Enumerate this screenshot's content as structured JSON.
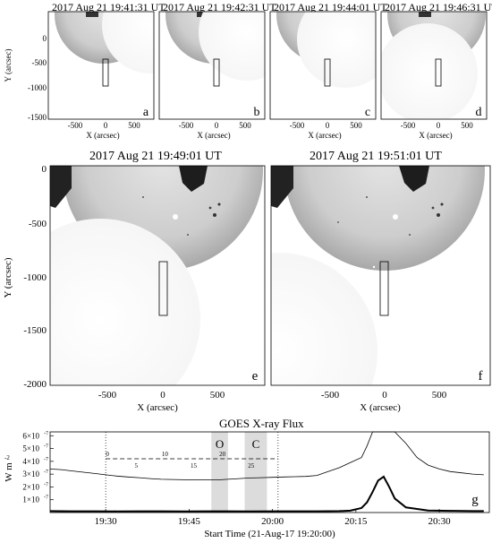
{
  "panels": {
    "a": {
      "title": "2017 Aug 21 19:41:31 UT",
      "letter": "a"
    },
    "b": {
      "title": "2017 Aug 21 19:42:31 UT",
      "letter": "b"
    },
    "c": {
      "title": "2017 Aug 21 19:44:01 UT",
      "letter": "c"
    },
    "d": {
      "title": "2017 Aug 21 19:46:31 UT",
      "letter": "d"
    },
    "e": {
      "title": "2017 Aug 21 19:49:01 UT",
      "letter": "e"
    },
    "f": {
      "title": "2017 Aug 21 19:51:01 UT",
      "letter": "f"
    }
  },
  "axes": {
    "x_label": "X (arcsec)",
    "y_label": "Y (arcsec)",
    "x_ticks": [
      "-500",
      "0",
      "500"
    ],
    "y_ticks": [
      "0",
      "-500",
      "-1000",
      "-1500",
      "-2000"
    ]
  },
  "chart_data": {
    "type": "line",
    "title": "GOES X-ray Flux",
    "letter": "g",
    "xlabel": "Start Time (21-Aug-17 19:20:00)",
    "ylabel": "W m",
    "ylabel_sup": "-2",
    "x_tick_labels": [
      "19:30",
      "19:45",
      "20:00",
      "20:15",
      "20:30"
    ],
    "x_tick_minutes": [
      10,
      25,
      40,
      55,
      70
    ],
    "xlim_minutes": [
      0,
      79
    ],
    "y_tick_labels": [
      "1×10",
      "2×10",
      "3×10",
      "4×10",
      "5×10",
      "6×10"
    ],
    "y_tick_exp": "-7",
    "ylim": [
      0,
      6.3e-07
    ],
    "shaded": [
      {
        "label": "O",
        "start_min": 29,
        "end_min": 32
      },
      {
        "label": "C",
        "start_min": 35,
        "end_min": 39
      }
    ],
    "dotted_verticals_min": [
      10,
      41
    ],
    "scale_bar": {
      "labels": [
        "0",
        "5",
        "10",
        "15",
        "20",
        "25"
      ],
      "start_min": 10,
      "end_min": 41
    },
    "series": [
      {
        "x": [
          0,
          2,
          4,
          6,
          8,
          10,
          12,
          14,
          16,
          18,
          20,
          22,
          24,
          26,
          28,
          30,
          32,
          34,
          36,
          38,
          40,
          42,
          44,
          46,
          48,
          50,
          52,
          54,
          56,
          57,
          58,
          59,
          60,
          62,
          64,
          66,
          68,
          70,
          72,
          74,
          76,
          78
        ],
        "values": [
          3.4e-07,
          3.35e-07,
          3.25e-07,
          3.15e-07,
          3.05e-07,
          2.95e-07,
          2.85e-07,
          2.78e-07,
          2.72e-07,
          2.65e-07,
          2.6e-07,
          2.58e-07,
          2.56e-07,
          2.55e-07,
          2.55e-07,
          2.55e-07,
          2.6e-07,
          2.65e-07,
          2.7e-07,
          2.72e-07,
          2.75e-07,
          2.78e-07,
          2.8e-07,
          2.82e-07,
          2.9e-07,
          3.2e-07,
          3.5e-07,
          3.9e-07,
          4.3e-07,
          5.2e-07,
          6.3e-07,
          6.3e-07,
          6.3e-07,
          6.3e-07,
          5.4e-07,
          4.3e-07,
          3.7e-07,
          3.4e-07,
          3.2e-07,
          3.1e-07,
          3e-07,
          2.95e-07
        ]
      },
      {
        "x": [
          0,
          4,
          8,
          12,
          16,
          20,
          24,
          28,
          32,
          36,
          40,
          44,
          48,
          52,
          54,
          56,
          57,
          58,
          59,
          60,
          61,
          62,
          64,
          68,
          72,
          76,
          78
        ],
        "values": [
          1.1e-08,
          1e-08,
          1e-08,
          9e-09,
          1e-08,
          1e-08,
          9e-09,
          1e-08,
          1e-08,
          9e-09,
          1e-08,
          1e-08,
          1e-08,
          1.1e-08,
          1.5e-08,
          3.5e-08,
          8e-08,
          1.6e-07,
          2.5e-07,
          2.8e-07,
          2e-07,
          1.1e-07,
          4e-08,
          1.6e-08,
          1.3e-08,
          1.1e-08,
          1.1e-08
        ]
      }
    ]
  }
}
